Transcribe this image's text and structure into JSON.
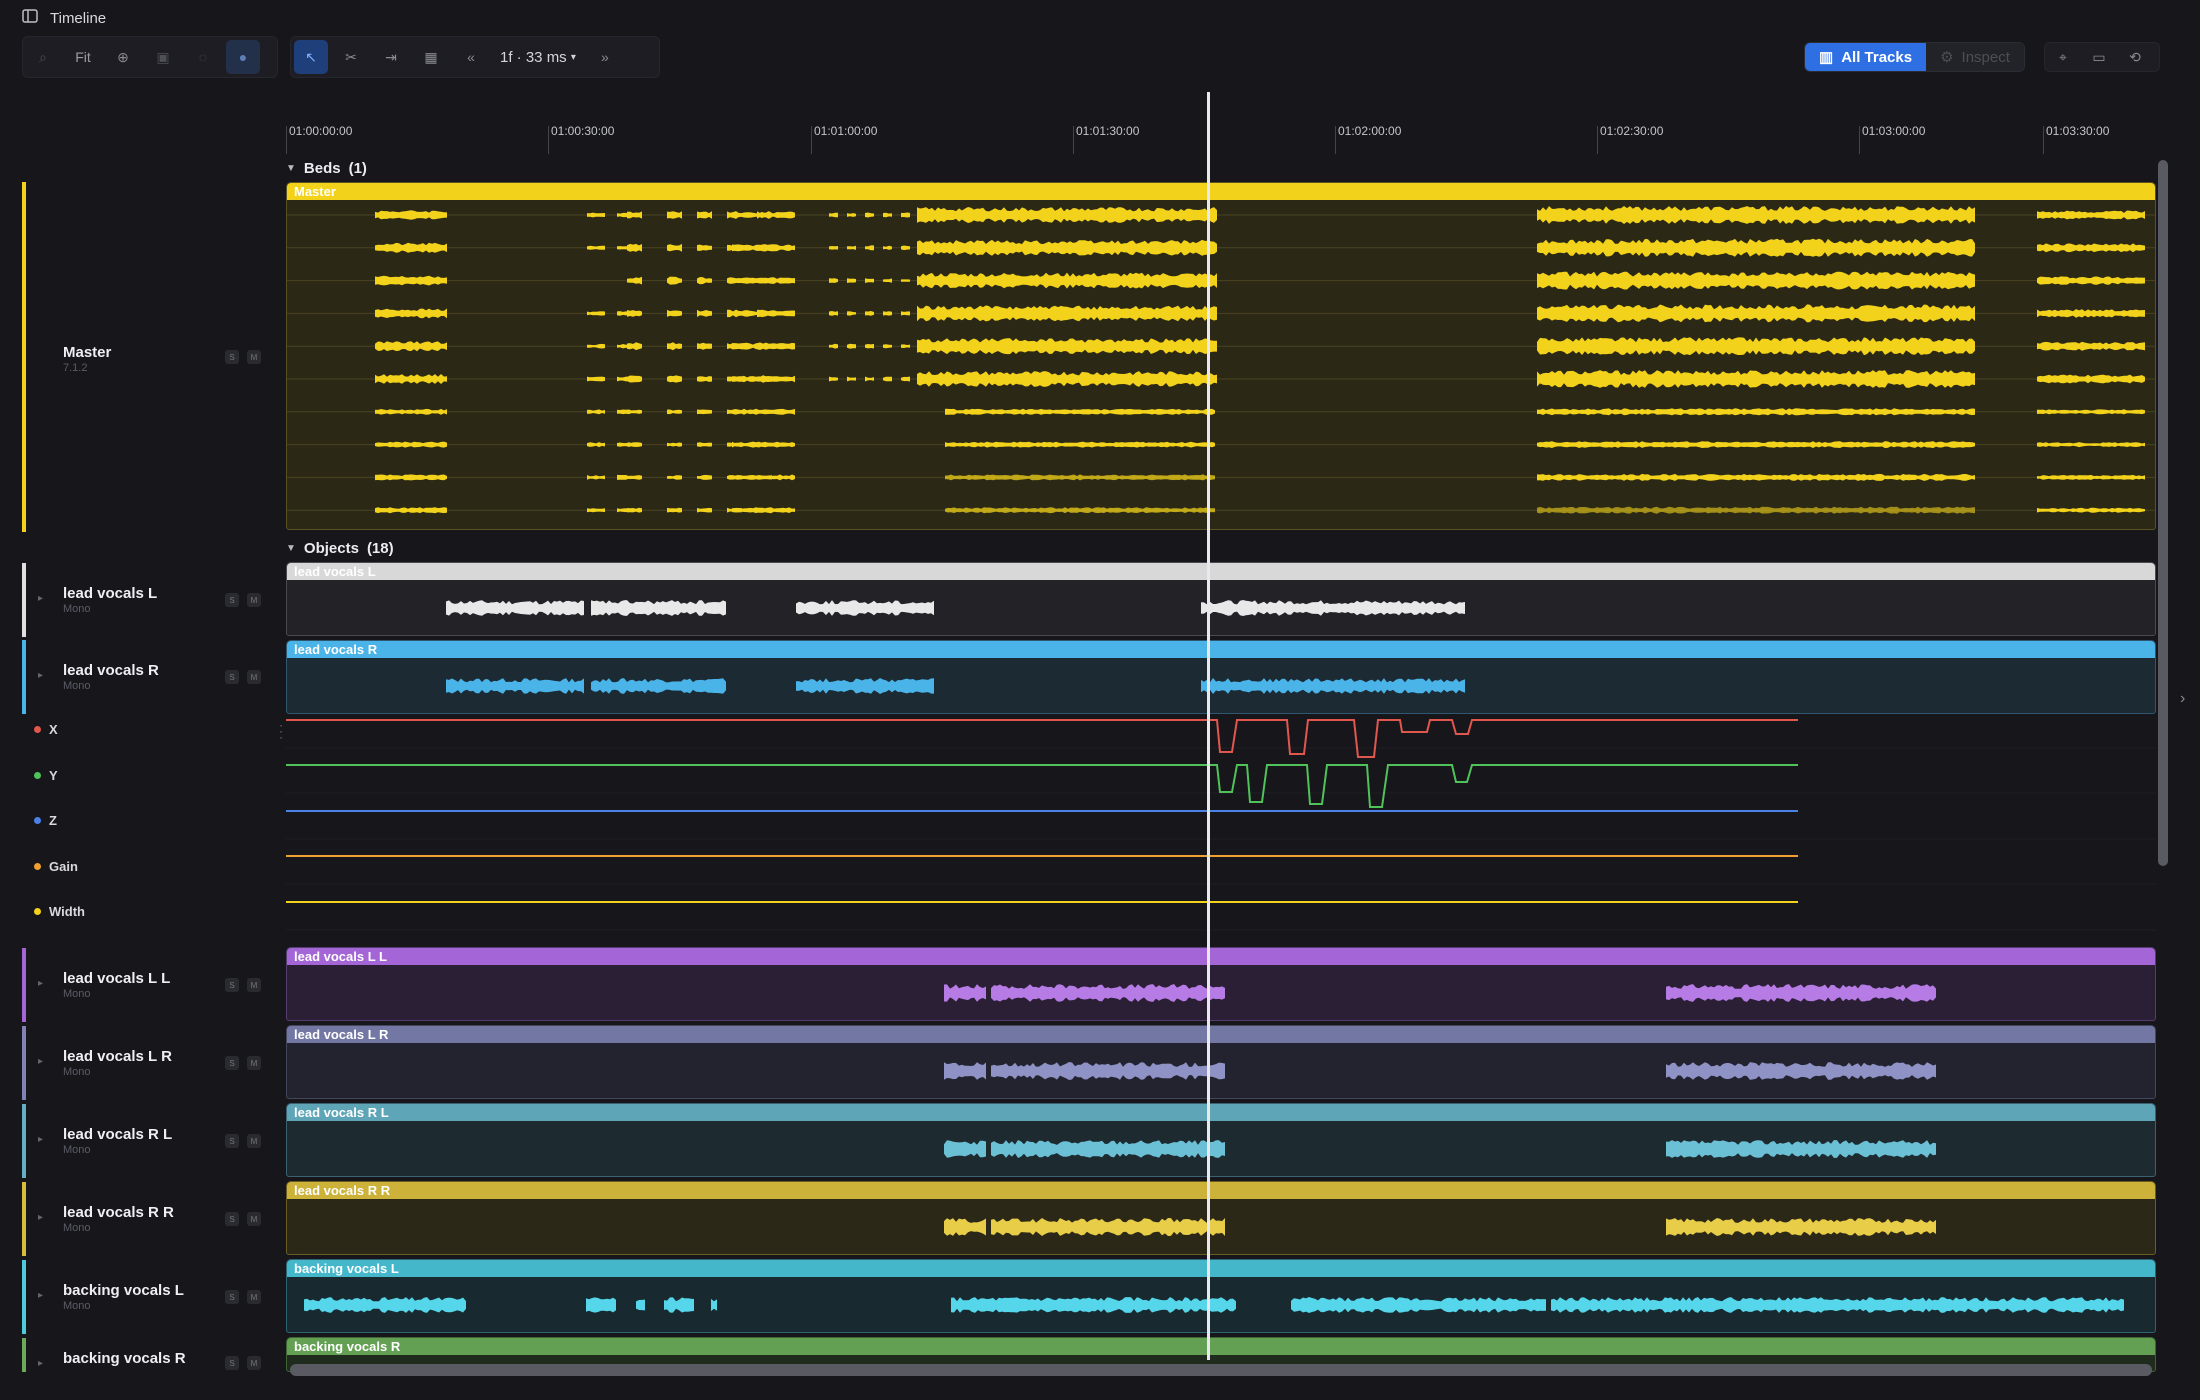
{
  "window": {
    "title": "Timeline"
  },
  "toolbar": {
    "fit_label": "Fit",
    "frame_label": "1f · 33 ms",
    "all_tracks_label": "All Tracks",
    "inspect_label": "Inspect"
  },
  "ruler": {
    "ticks": [
      "01:00:00:00",
      "01:00:30:00",
      "01:01:00:00",
      "01:01:30:00",
      "01:02:00:00",
      "01:02:30:00",
      "01:03:00:00",
      "01:03:30:00"
    ]
  },
  "groups": {
    "beds": {
      "label": "Beds",
      "count": "(1)"
    },
    "objects": {
      "label": "Objects",
      "count": "(18)"
    }
  },
  "tracks": {
    "master": {
      "name": "Master",
      "sub": "7.1.2",
      "clip": "Master",
      "color": "#f2d21a"
    },
    "lvL": {
      "name": "lead vocals L",
      "sub": "Mono",
      "clip": "lead vocals L",
      "color": "#e0e0e0"
    },
    "lvR": {
      "name": "lead vocals R",
      "sub": "Mono",
      "clip": "lead vocals R",
      "color": "#4ab3e8"
    },
    "lvLL": {
      "name": "lead vocals L L",
      "sub": "Mono",
      "clip": "lead vocals L L",
      "color": "#a465d6"
    },
    "lvLR": {
      "name": "lead vocals L R",
      "sub": "Mono",
      "clip": "lead vocals L R",
      "color": "#8083b3"
    },
    "lvRL": {
      "name": "lead vocals R L",
      "sub": "Mono",
      "clip": "lead vocals R L",
      "color": "#64aec4"
    },
    "lvRR": {
      "name": "lead vocals R R",
      "sub": "Mono",
      "clip": "lead vocals R R",
      "color": "#d8bd3c"
    },
    "bvL": {
      "name": "backing vocals L",
      "sub": "Mono",
      "clip": "backing vocals L",
      "color": "#4fc9de"
    },
    "bvR": {
      "name": "backing vocals R",
      "sub": "Mono",
      "clip": "backing vocals R",
      "color": "#6aaa5a"
    }
  },
  "automation": {
    "x": {
      "label": "X",
      "color": "#e0574e"
    },
    "y": {
      "label": "Y",
      "color": "#4fc25a"
    },
    "z": {
      "label": "Z",
      "color": "#4a82e8"
    },
    "gain": {
      "label": "Gain",
      "color": "#f0a030"
    },
    "width": {
      "label": "Width",
      "color": "#f2d21a"
    }
  },
  "sm": {
    "s": "S",
    "m": "M"
  }
}
